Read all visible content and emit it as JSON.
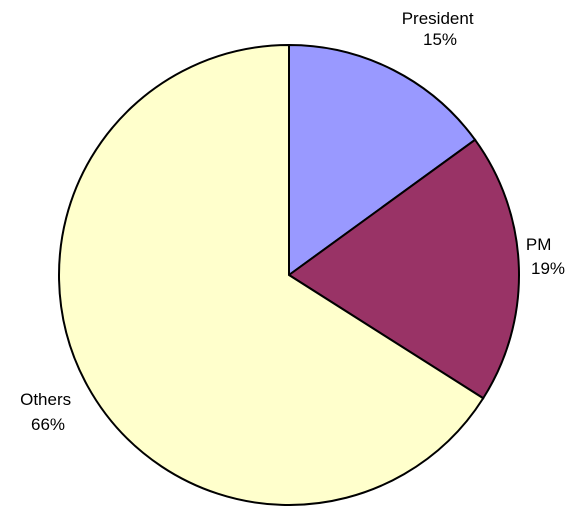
{
  "chart_data": {
    "type": "pie",
    "start_angle_deg": 90,
    "direction": "clockwise",
    "legend": "none",
    "slices": [
      {
        "name": "President",
        "value": 15,
        "value_label": "15%",
        "color": "#9999ff"
      },
      {
        "name": "PM",
        "value": 19,
        "value_label": "19%",
        "color": "#993366"
      },
      {
        "name": "Others",
        "value": 66,
        "value_label": "66%",
        "color": "#ffffcc"
      }
    ]
  }
}
